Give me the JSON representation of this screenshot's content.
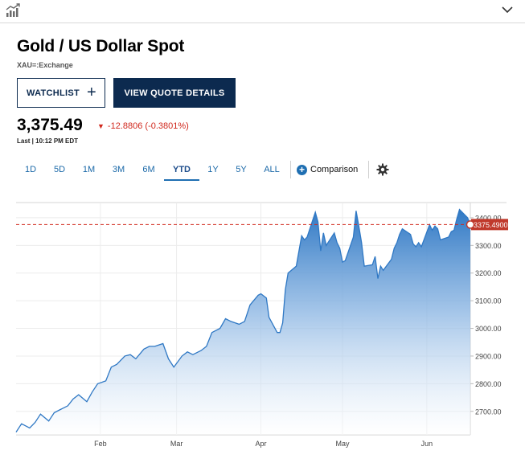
{
  "header": {
    "chart_icon": "chart-icon",
    "expand_icon": "chevron-down-icon"
  },
  "quote": {
    "title": "Gold / US Dollar Spot",
    "symbol": "XAU=:Exchange",
    "watchlist_label": "WATCHLIST",
    "watchlist_plus": "+",
    "details_label": "VIEW QUOTE DETAILS",
    "price": "3,375.49",
    "change_arrow": "▼",
    "change": "-12.8806 (-0.3801%)",
    "last": "Last | 10:12 PM EDT"
  },
  "ranges": [
    "1D",
    "5D",
    "1M",
    "3M",
    "6M",
    "YTD",
    "1Y",
    "5Y",
    "ALL"
  ],
  "active_range": "YTD",
  "comparison_label": "Comparison",
  "colors": {
    "navy": "#0c2a4f",
    "accent": "#1f6fb2",
    "down": "#d0271c",
    "line": "#2f78c4"
  },
  "chart_data": {
    "type": "area",
    "title": "",
    "xlabel": "",
    "ylabel": "",
    "ylim": [
      2615,
      3455
    ],
    "y_ticks": [
      2700,
      2800,
      2900,
      3000,
      3100,
      3200,
      3300,
      3400
    ],
    "y_tick_labels": [
      "2700.00",
      "2800.00",
      "2900.00",
      "3000.00",
      "3100.00",
      "3200.00",
      "3300.00",
      "3400.00"
    ],
    "x_ticks": [
      "2025-02-01",
      "2025-03-01",
      "2025-04-01",
      "2025-05-01",
      "2025-06-01"
    ],
    "x_tick_labels": [
      "Feb",
      "Mar",
      "Apr",
      "May",
      "Jun"
    ],
    "x_range": [
      "2025-01-01",
      "2025-06-17"
    ],
    "grid": true,
    "last_value": 3375.49,
    "last_label": "3375.4900",
    "series": [
      {
        "x": [
          "2025-01-01",
          "2025-01-03",
          "2025-01-06",
          "2025-01-08",
          "2025-01-10",
          "2025-01-13",
          "2025-01-15",
          "2025-01-17",
          "2025-01-20",
          "2025-01-22",
          "2025-01-24",
          "2025-01-27",
          "2025-01-29",
          "2025-01-31",
          "2025-02-03",
          "2025-02-05",
          "2025-02-07",
          "2025-02-10",
          "2025-02-12",
          "2025-02-14",
          "2025-02-17",
          "2025-02-19",
          "2025-02-21",
          "2025-02-24",
          "2025-02-26",
          "2025-02-28",
          "2025-03-03",
          "2025-03-05",
          "2025-03-07",
          "2025-03-10",
          "2025-03-12",
          "2025-03-14",
          "2025-03-17",
          "2025-03-19",
          "2025-03-21",
          "2025-03-24",
          "2025-03-26",
          "2025-03-28",
          "2025-03-31",
          "2025-04-01",
          "2025-04-03",
          "2025-04-04",
          "2025-04-07",
          "2025-04-08",
          "2025-04-09",
          "2025-04-10",
          "2025-04-11",
          "2025-04-14",
          "2025-04-16",
          "2025-04-17",
          "2025-04-18",
          "2025-04-21",
          "2025-04-22",
          "2025-04-23",
          "2025-04-24",
          "2025-04-25",
          "2025-04-28",
          "2025-04-29",
          "2025-04-30",
          "2025-05-01",
          "2025-05-02",
          "2025-05-05",
          "2025-05-06",
          "2025-05-07",
          "2025-05-08",
          "2025-05-09",
          "2025-05-12",
          "2025-05-13",
          "2025-05-14",
          "2025-05-15",
          "2025-05-16",
          "2025-05-19",
          "2025-05-20",
          "2025-05-21",
          "2025-05-22",
          "2025-05-23",
          "2025-05-26",
          "2025-05-27",
          "2025-05-28",
          "2025-05-29",
          "2025-05-30",
          "2025-06-02",
          "2025-06-03",
          "2025-06-04",
          "2025-06-05",
          "2025-06-06",
          "2025-06-09",
          "2025-06-10",
          "2025-06-11",
          "2025-06-12",
          "2025-06-13",
          "2025-06-16",
          "2025-06-17"
        ],
        "y": [
          2625,
          2655,
          2640,
          2660,
          2690,
          2665,
          2695,
          2705,
          2720,
          2745,
          2760,
          2735,
          2770,
          2800,
          2810,
          2860,
          2870,
          2900,
          2905,
          2890,
          2925,
          2935,
          2935,
          2945,
          2890,
          2860,
          2900,
          2915,
          2905,
          2920,
          2935,
          2985,
          3000,
          3035,
          3025,
          3015,
          3025,
          3085,
          3120,
          3125,
          3110,
          3040,
          2985,
          2985,
          3020,
          3140,
          3200,
          3225,
          3335,
          3320,
          3330,
          3420,
          3385,
          3280,
          3345,
          3300,
          3345,
          3310,
          3290,
          3240,
          3245,
          3330,
          3425,
          3370,
          3310,
          3225,
          3230,
          3260,
          3180,
          3225,
          3210,
          3250,
          3290,
          3310,
          3340,
          3360,
          3340,
          3305,
          3295,
          3310,
          3295,
          3375,
          3355,
          3370,
          3360,
          3320,
          3330,
          3350,
          3355,
          3395,
          3430,
          3400,
          3375
        ]
      }
    ]
  }
}
